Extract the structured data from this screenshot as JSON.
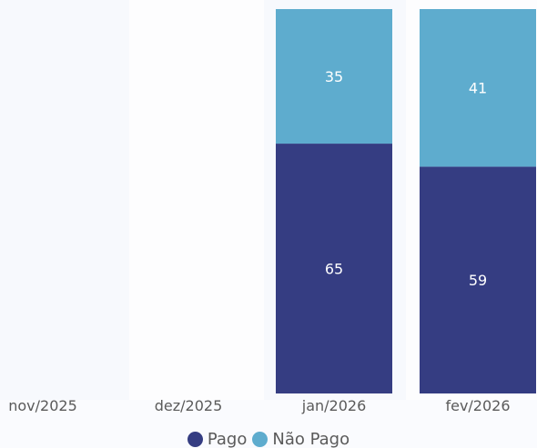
{
  "chart_data": {
    "type": "bar",
    "stacked": true,
    "categories": [
      "nov/2025",
      "dez/2025",
      "jan/2026",
      "fev/2026"
    ],
    "series": [
      {
        "name": "Pago",
        "color": "#353d82",
        "values": [
          null,
          null,
          65,
          59
        ]
      },
      {
        "name": "Não Pago",
        "color": "#5eacce",
        "values": [
          null,
          null,
          35,
          41
        ]
      }
    ],
    "ylim": [
      0,
      100
    ],
    "grid": false,
    "legend_position": "bottom-center"
  },
  "legend": {
    "items": [
      {
        "label": "Pago",
        "color": "#353d82"
      },
      {
        "label": "Não Pago",
        "color": "#5eacce"
      }
    ]
  }
}
